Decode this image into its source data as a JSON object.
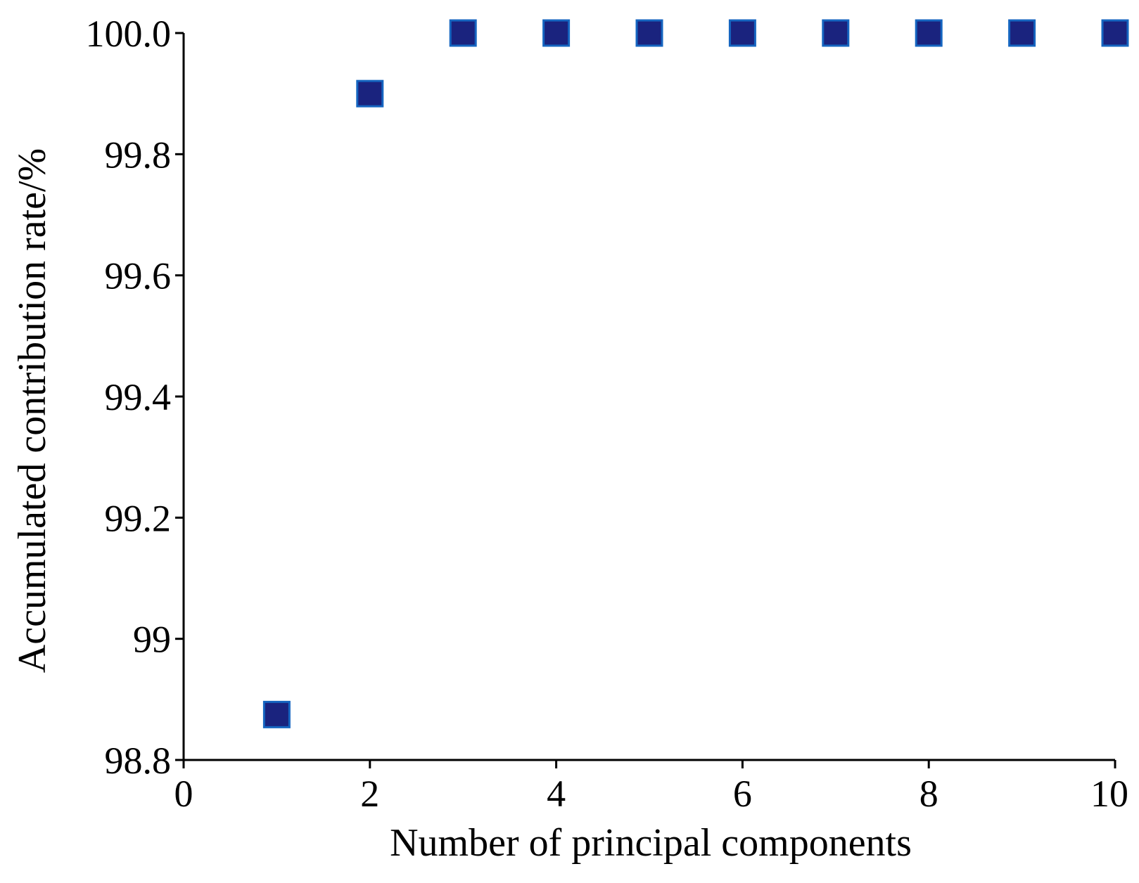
{
  "chart_data": {
    "type": "scatter",
    "title": "",
    "xlabel": "Number of principal components",
    "ylabel": "Accumulated contribution rate/%",
    "xlim": [
      0,
      10
    ],
    "ylim": [
      98.8,
      100.0
    ],
    "x_ticks": [
      "0",
      "2",
      "4",
      "6",
      "8",
      "10"
    ],
    "x_tick_values": [
      0,
      2,
      4,
      6,
      8,
      10
    ],
    "y_ticks": [
      "98.8",
      "99",
      "99.2",
      "99.4",
      "99.6",
      "99.8",
      "100.0"
    ],
    "y_tick_values": [
      98.8,
      99.0,
      99.2,
      99.4,
      99.6,
      99.8,
      100.0
    ],
    "grid": false,
    "legend": "none",
    "marker": "square",
    "marker_color": "#1a237e",
    "marker_edge_color": "#1565c0",
    "series": [
      {
        "x": [
          1,
          2,
          3,
          4,
          5,
          6,
          7,
          8,
          9,
          10
        ],
        "y": [
          98.875,
          99.9,
          100.0,
          100.0,
          100.0,
          100.0,
          100.0,
          100.0,
          100.0,
          100.0
        ]
      }
    ]
  }
}
